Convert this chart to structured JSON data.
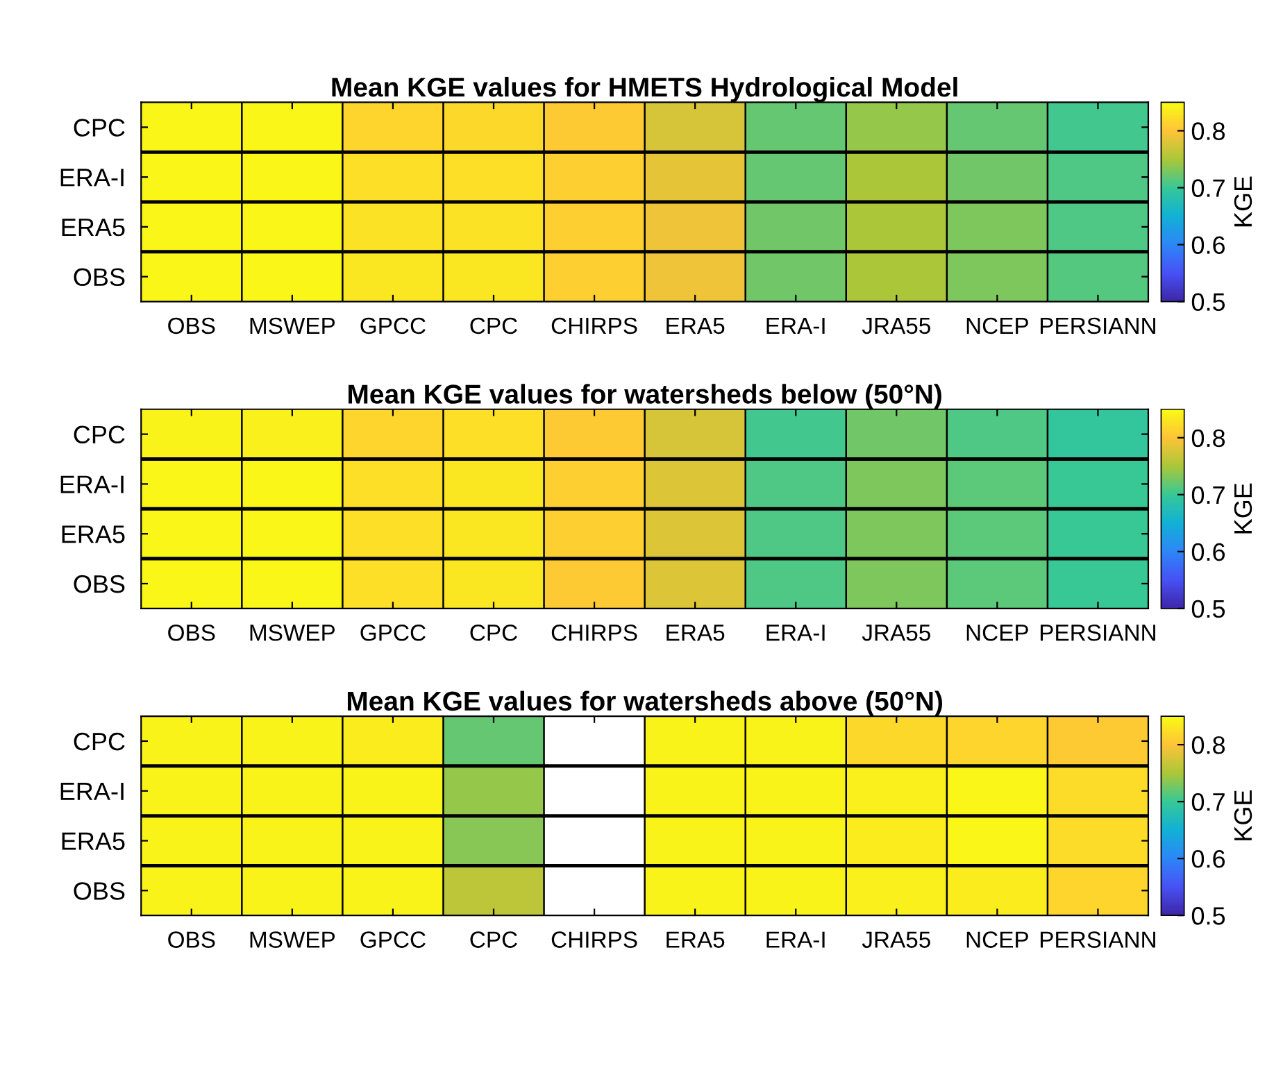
{
  "chart_data": [
    {
      "type": "heatmap",
      "title": "Mean KGE values for HMETS Hydrological Model",
      "clabel": "KGE",
      "clim": [
        0.5,
        0.85
      ],
      "cticks": [
        0.5,
        0.6,
        0.7,
        0.8
      ],
      "categories": [
        "OBS",
        "MSWEP",
        "GPCC",
        "CPC",
        "CHIRPS",
        "ERA5",
        "ERA-I",
        "JRA55",
        "NCEP",
        "PERSIANN"
      ],
      "y_categories": [
        "CPC",
        "ERA-I",
        "ERA5",
        "OBS"
      ],
      "cells": [
        [
          0.845,
          0.845,
          0.815,
          0.818,
          0.805,
          0.775,
          0.72,
          0.74,
          0.72,
          0.705
        ],
        [
          0.845,
          0.845,
          0.825,
          0.825,
          0.81,
          0.785,
          0.72,
          0.75,
          0.725,
          0.71
        ],
        [
          0.845,
          0.845,
          0.828,
          0.828,
          0.81,
          0.79,
          0.725,
          0.75,
          0.73,
          0.71
        ],
        [
          0.845,
          0.845,
          0.83,
          0.83,
          0.81,
          0.79,
          0.725,
          0.75,
          0.73,
          0.712
        ]
      ]
    },
    {
      "type": "heatmap",
      "title": "Mean KGE values for watersheds below (50°N)",
      "clabel": "KGE",
      "clim": [
        0.5,
        0.85
      ],
      "cticks": [
        0.5,
        0.6,
        0.7,
        0.8
      ],
      "categories": [
        "OBS",
        "MSWEP",
        "GPCC",
        "CPC",
        "CHIRPS",
        "ERA5",
        "ERA-I",
        "JRA55",
        "NCEP",
        "PERSIANN"
      ],
      "y_categories": [
        "CPC",
        "ERA-I",
        "ERA5",
        "OBS"
      ],
      "cells": [
        [
          0.843,
          0.84,
          0.815,
          0.825,
          0.805,
          0.775,
          0.705,
          0.725,
          0.71,
          0.695
        ],
        [
          0.845,
          0.845,
          0.825,
          0.83,
          0.81,
          0.78,
          0.71,
          0.73,
          0.715,
          0.7
        ],
        [
          0.845,
          0.845,
          0.825,
          0.83,
          0.81,
          0.78,
          0.71,
          0.73,
          0.715,
          0.7
        ],
        [
          0.845,
          0.845,
          0.825,
          0.83,
          0.805,
          0.78,
          0.71,
          0.73,
          0.715,
          0.7
        ]
      ]
    },
    {
      "type": "heatmap",
      "title": "Mean KGE values for watersheds above (50°N)",
      "clabel": "KGE",
      "clim": [
        0.5,
        0.85
      ],
      "cticks": [
        0.5,
        0.6,
        0.7,
        0.8
      ],
      "categories": [
        "OBS",
        "MSWEP",
        "GPCC",
        "CPC",
        "CHIRPS",
        "ERA5",
        "ERA-I",
        "JRA55",
        "NCEP",
        "PERSIANN"
      ],
      "y_categories": [
        "CPC",
        "ERA-I",
        "ERA5",
        "OBS"
      ],
      "cells": [
        [
          0.843,
          0.843,
          0.835,
          0.72,
          null,
          0.843,
          0.843,
          0.818,
          0.815,
          0.805
        ],
        [
          0.843,
          0.843,
          0.843,
          0.74,
          null,
          0.843,
          0.843,
          0.84,
          0.845,
          0.82
        ],
        [
          0.843,
          0.843,
          0.843,
          0.735,
          null,
          0.843,
          0.843,
          0.835,
          0.845,
          0.82
        ],
        [
          0.843,
          0.843,
          0.843,
          0.76,
          null,
          0.843,
          0.843,
          0.84,
          0.835,
          0.815
        ]
      ]
    }
  ]
}
